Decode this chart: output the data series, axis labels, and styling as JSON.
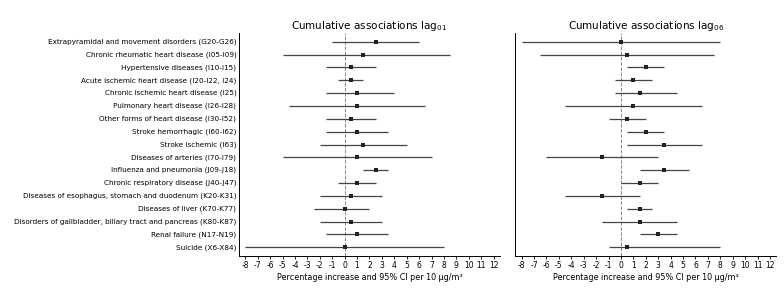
{
  "categories": [
    "Extrapyramidal and movement disorders (G20-G26)",
    "Chronic rheumatic heart disease (I05-I09)",
    "Hypertensive diseases (I10-I15)",
    "Acute ischemic heart disease (I20-I22, I24)",
    "Chronic ischemic heart disease (I25)",
    "Pulmonary heart disease (I26-I28)",
    "Other forms of heart disease (I30-I52)",
    "Stroke hemorrhagic (I60-I62)",
    "Stroke ischemic (I63)",
    "Diseases of arteries (I70-I79)",
    "Influenza and pneumonia (J09-J18)",
    "Chronic respiratory disease (J40-J47)",
    "Diseases of esophagus, stomach and duodenum (K20-K31)",
    "Diseases of liver (K70-K77)",
    "Disorders of gallbladder, biliary tract and pancreas (K80-K87)",
    "Renal failure (N17-N19)",
    "Suicide (X6-X84)"
  ],
  "lag01": {
    "est": [
      2.5,
      1.5,
      0.5,
      0.5,
      1.0,
      1.0,
      0.5,
      1.0,
      1.5,
      1.0,
      2.5,
      1.0,
      0.5,
      0.0,
      0.5,
      1.0,
      0.0
    ],
    "lo": [
      -1.0,
      -5.0,
      -1.5,
      -0.5,
      -1.5,
      -4.5,
      -1.5,
      -1.5,
      -2.0,
      -5.0,
      1.5,
      -0.5,
      -2.0,
      -2.5,
      -2.0,
      -1.5,
      -8.0
    ],
    "hi": [
      6.0,
      8.5,
      2.5,
      1.5,
      4.0,
      6.5,
      2.5,
      3.5,
      5.0,
      7.0,
      3.5,
      2.5,
      3.0,
      2.0,
      3.0,
      3.5,
      8.0
    ]
  },
  "lag06": {
    "est": [
      0.0,
      0.5,
      2.0,
      1.0,
      1.5,
      1.0,
      0.5,
      2.0,
      3.5,
      -1.5,
      3.5,
      1.5,
      -1.5,
      1.5,
      1.5,
      3.0,
      0.5
    ],
    "lo": [
      -8.0,
      -6.5,
      0.5,
      -0.5,
      -0.5,
      -4.5,
      -1.0,
      0.5,
      0.5,
      -6.0,
      1.5,
      0.0,
      -4.5,
      0.5,
      -1.5,
      1.5,
      -1.0
    ],
    "hi": [
      8.0,
      7.5,
      3.5,
      2.5,
      4.5,
      6.5,
      2.0,
      3.5,
      6.5,
      3.0,
      5.5,
      3.0,
      1.5,
      2.5,
      4.5,
      4.5,
      8.0
    ]
  },
  "title_lag01": "Cumulative associations lag$_{01}$",
  "title_lag06": "Cumulative associations lag$_{06}$",
  "xlabel": "Percentage increase and 95% CI per 10 μg/m³",
  "xlim": [
    -8.5,
    12.5
  ],
  "xticks": [
    -8,
    -7,
    -6,
    -5,
    -4,
    -3,
    -2,
    -1,
    0,
    1,
    2,
    3,
    4,
    5,
    6,
    7,
    8,
    9,
    10,
    11,
    12
  ],
  "marker_color": "#222222",
  "line_color": "#444444",
  "vline_color": "#888888",
  "label_fontsize": 5.2,
  "title_fontsize": 7.5,
  "xlabel_fontsize": 5.8,
  "xtick_fontsize": 5.5
}
